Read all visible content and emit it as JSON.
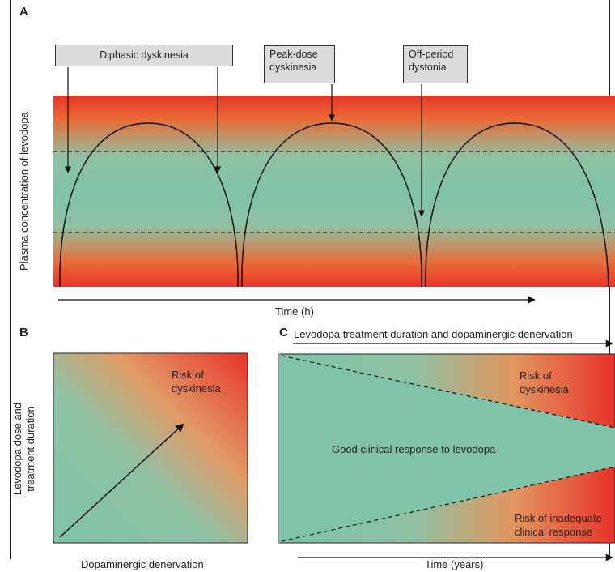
{
  "colors": {
    "red": "#e8332a",
    "orange": "#ea7e3c",
    "teal": "#7fc3a8",
    "callout_bg": "#dcdcdc"
  },
  "panel_a": {
    "letter": "A",
    "callouts": {
      "diphasic": "Diphasic dyskinesia",
      "peak_line1": "Peak-dose",
      "peak_line2": "dyskinesia",
      "off_line1": "Off-period",
      "off_line2": "dystonia"
    },
    "y_label": "Plasma concentration of levodopa",
    "x_label": "Time (h)"
  },
  "panel_b": {
    "letter": "B",
    "risk_line1": "Risk of",
    "risk_line2": "dyskinesia",
    "y_label_line1": "Levodopa dose and",
    "y_label_line2": "treatment duration",
    "x_label": "Dopaminergic denervation"
  },
  "panel_c": {
    "letter": "C",
    "top_label": "Levodopa treatment duration and dopaminergic denervation",
    "good_response": "Good clinical response to levodopa",
    "risk_dysk_line1": "Risk of",
    "risk_dysk_line2": "dyskinesia",
    "risk_inad_line1": "Risk of inadequate",
    "risk_inad_line2": "clinical response",
    "x_label": "Time (years)"
  }
}
